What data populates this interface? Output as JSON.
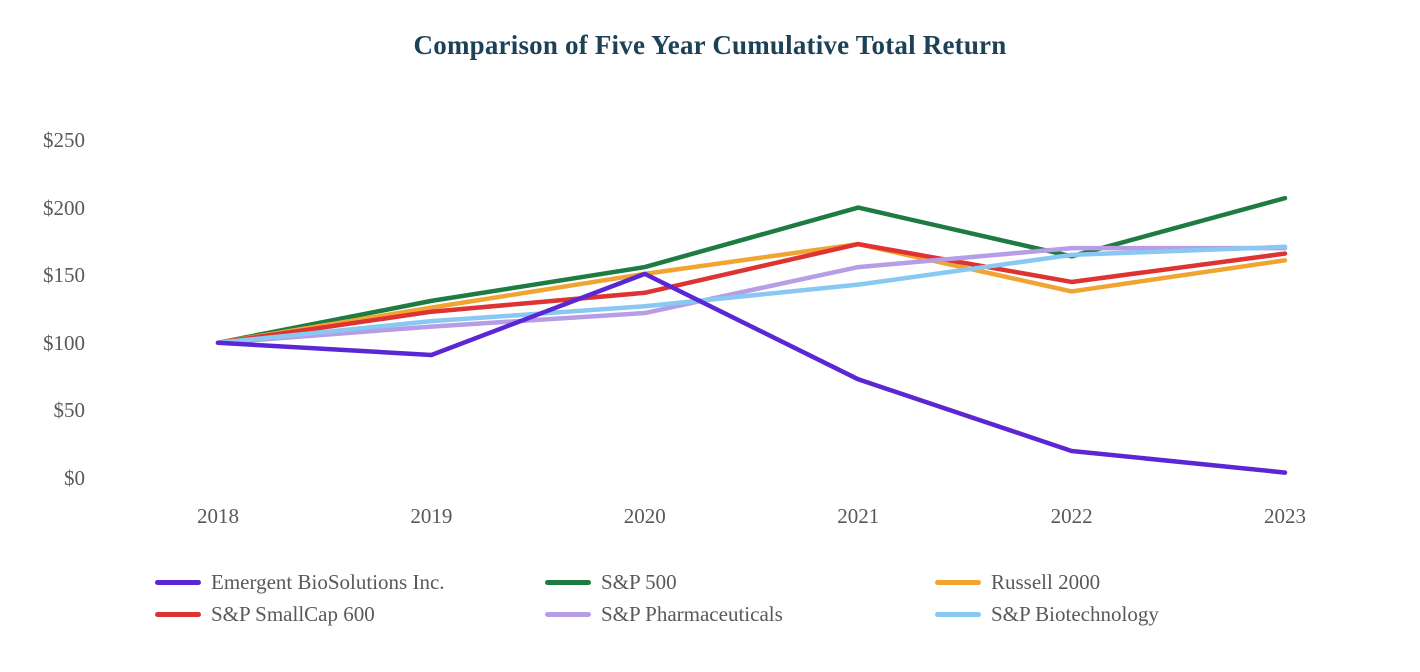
{
  "page": {
    "background_color": "#ffffff",
    "title_color": "#1d4257",
    "axis_text_color": "#595959"
  },
  "chart_data": {
    "type": "line",
    "title": "Comparison of Five Year Cumulative Total Return",
    "xlabel": "",
    "ylabel": "",
    "x": [
      "2018",
      "2019",
      "2020",
      "2021",
      "2022",
      "2023"
    ],
    "ylim": [
      0,
      250
    ],
    "yticks": [
      {
        "value": 0,
        "label": "$0"
      },
      {
        "value": 50,
        "label": "$50"
      },
      {
        "value": 100,
        "label": "$100"
      },
      {
        "value": 150,
        "label": "$150"
      },
      {
        "value": 200,
        "label": "$200"
      },
      {
        "value": 250,
        "label": "$250"
      }
    ],
    "grid": false,
    "legend_position": "bottom",
    "series": [
      {
        "name": "Emergent BioSolutions Inc.",
        "color": "#5b27d5",
        "values": [
          100,
          91,
          151,
          73,
          20,
          4
        ]
      },
      {
        "name": "S&P 500",
        "color": "#1e7b41",
        "values": [
          100,
          131,
          156,
          200,
          164,
          207
        ]
      },
      {
        "name": "Russell 2000",
        "color": "#f0a431",
        "values": [
          100,
          126,
          151,
          173,
          138,
          161
        ]
      },
      {
        "name": "S&P SmallCap 600",
        "color": "#dd3333",
        "values": [
          100,
          123,
          137,
          173,
          145,
          166
        ]
      },
      {
        "name": "S&P Pharmaceuticals",
        "color": "#b79ce6",
        "values": [
          100,
          112,
          122,
          156,
          170,
          170
        ]
      },
      {
        "name": "S&P Biotechnology",
        "color": "#89c8f2",
        "values": [
          100,
          116,
          127,
          143,
          165,
          171
        ]
      }
    ],
    "draw_order": [
      1,
      2,
      3,
      4,
      5,
      0
    ],
    "legend_order": [
      0,
      1,
      2,
      3,
      4,
      5
    ]
  }
}
